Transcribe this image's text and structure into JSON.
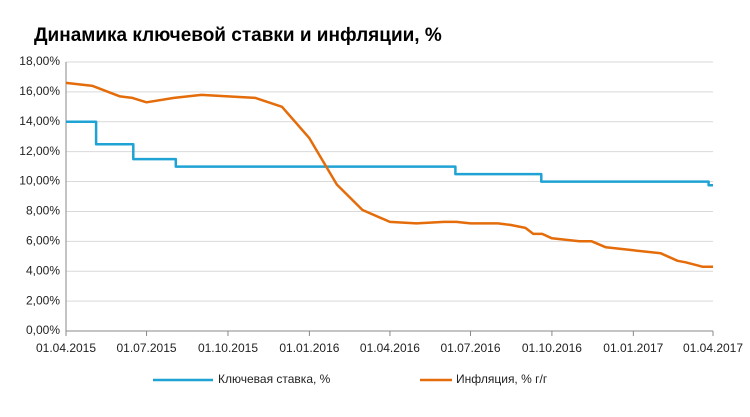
{
  "chart_data": {
    "type": "line",
    "title": "Динамика ключевой ставки и инфляции, %",
    "xlim": [
      "01.04.2015",
      "01.04.2017"
    ],
    "xticks": [
      "01.04.2015",
      "01.07.2015",
      "01.10.2015",
      "01.01.2016",
      "01.04.2016",
      "01.07.2016",
      "01.10.2016",
      "01.01.2017",
      "01.04.2017"
    ],
    "ylim": [
      0,
      18
    ],
    "yticks": [
      {
        "value": 0,
        "label": "0,00%"
      },
      {
        "value": 2,
        "label": "2,00%"
      },
      {
        "value": 4,
        "label": "4,00%"
      },
      {
        "value": 6,
        "label": "6,00%"
      },
      {
        "value": 8,
        "label": "8,00%"
      },
      {
        "value": 10,
        "label": "10,00%"
      },
      {
        "value": 12,
        "label": "12,00%"
      },
      {
        "value": 14,
        "label": "14,00%"
      },
      {
        "value": 16,
        "label": "16,00%"
      },
      {
        "value": 18,
        "label": "18,00%"
      }
    ],
    "grid": true,
    "legend": "bottom",
    "series": [
      {
        "name": "Ключевая ставка, %",
        "color": "#1ea3d4",
        "x": [
          "01.04.2015",
          "05.05.2015",
          "05.05.2015",
          "16.06.2015",
          "16.06.2015",
          "03.08.2015",
          "03.08.2015",
          "14.06.2016",
          "14.06.2016",
          "19.09.2016",
          "19.09.2016",
          "27.03.2017",
          "27.03.2017",
          "01.04.2017"
        ],
        "values": [
          14,
          14,
          12.5,
          12.5,
          11.5,
          11.5,
          11,
          11,
          10.5,
          10.5,
          10,
          10,
          9.75,
          9.75
        ]
      },
      {
        "name": "Инфляция, % г/г",
        "color": "#e46c0a",
        "x": [
          "01.04.2015",
          "01.05.2015",
          "01.06.2015",
          "15.06.2015",
          "01.07.2015",
          "01.08.2015",
          "01.09.2015",
          "01.10.2015",
          "01.11.2015",
          "01.12.2015",
          "01.01.2016",
          "01.02.2016",
          "01.03.2016",
          "01.04.2016",
          "01.05.2016",
          "01.06.2016",
          "15.06.2016",
          "01.07.2016",
          "01.08.2016",
          "15.08.2016",
          "01.09.2016",
          "10.09.2016",
          "20.09.2016",
          "01.10.2016",
          "01.11.2016",
          "15.11.2016",
          "01.12.2016",
          "01.01.2017",
          "01.02.2017",
          "20.02.2017",
          "01.03.2017",
          "20.03.2017",
          "01.04.2017"
        ],
        "values": [
          16.6,
          16.4,
          15.7,
          15.6,
          15.3,
          15.6,
          15.8,
          15.7,
          15.6,
          15.0,
          12.9,
          9.8,
          8.1,
          7.3,
          7.2,
          7.3,
          7.3,
          7.2,
          7.2,
          7.1,
          6.9,
          6.5,
          6.5,
          6.2,
          6.0,
          6.0,
          5.6,
          5.4,
          5.2,
          4.7,
          4.6,
          4.3,
          4.3
        ]
      }
    ]
  }
}
